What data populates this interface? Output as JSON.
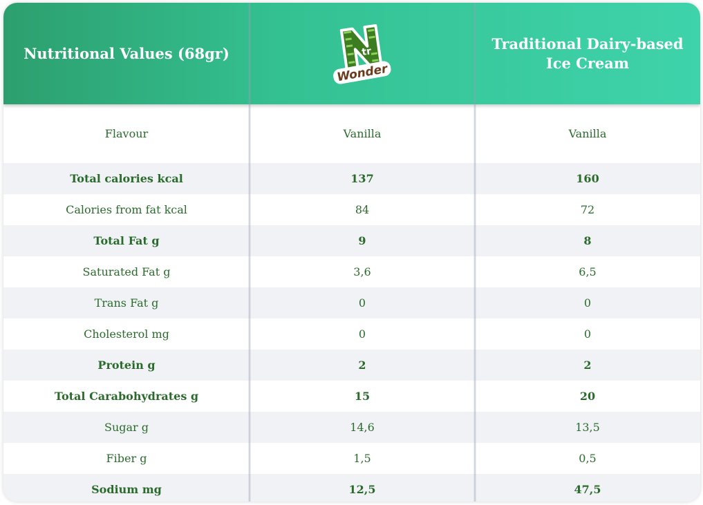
{
  "header": {
    "col0": "Nutritional Values (68gr)",
    "col1_logo_text": "Wonder",
    "col2": "Traditional Dairy-based Ice Cream"
  },
  "colors": {
    "header_start": "#2d9f6e",
    "header_end": "#3fd3ab",
    "text_green": "#2a6b2c",
    "alt_row": "#f1f2f6"
  },
  "rows": [
    {
      "label": "Flavour",
      "a": "Vanilla",
      "b": "Vanilla",
      "bold": false
    },
    {
      "label": "Total calories kcal",
      "a": "137",
      "b": "160",
      "bold": true
    },
    {
      "label": "Calories from fat kcal",
      "a": "84",
      "b": "72",
      "bold": false
    },
    {
      "label": "Total Fat g",
      "a": "9",
      "b": "8",
      "bold": true
    },
    {
      "label": "Saturated Fat g",
      "a": "3,6",
      "b": "6,5",
      "bold": false
    },
    {
      "label": "Trans Fat g",
      "a": "0",
      "b": "0",
      "bold": false
    },
    {
      "label": "Cholesterol mg",
      "a": "0",
      "b": "0",
      "bold": false
    },
    {
      "label": "Protein g",
      "a": "2",
      "b": "2",
      "bold": true
    },
    {
      "label": "Total Carabohydrates g",
      "a": "15",
      "b": "20",
      "bold": true
    },
    {
      "label": "Sugar g",
      "a": "14,6",
      "b": "13,5",
      "bold": false
    },
    {
      "label": "Fiber g",
      "a": "1,5",
      "b": "0,5",
      "bold": false
    },
    {
      "label": "Sodium mg",
      "a": "12,5",
      "b": "47,5",
      "bold": true
    }
  ]
}
